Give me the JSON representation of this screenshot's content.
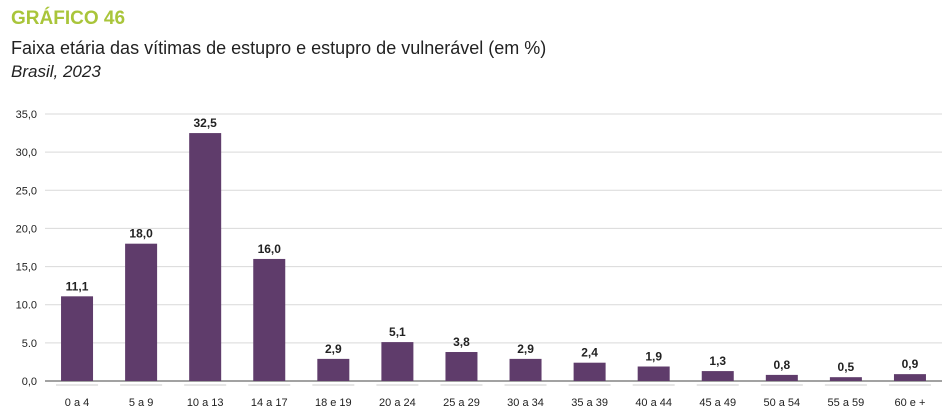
{
  "header": {
    "label": "GRÁFICO 46",
    "title": "Faixa etária das vítimas de estupro e estupro de vulnerável (em %)",
    "subtitle": "Brasil, 2023"
  },
  "colors": {
    "label": "#a9c53a",
    "bar": "#5f3c6b",
    "grid": "#d9d9d9",
    "axis": "#444444"
  },
  "chart_data": {
    "type": "bar",
    "title": "Faixa etária das vítimas de estupro e estupro de vulnerável (em %)",
    "subtitle": "Brasil, 2023",
    "xlabel": "",
    "ylabel": "",
    "categories": [
      "0 a 4",
      "5 a 9",
      "10 a 13",
      "14 a 17",
      "18 e 19",
      "20 a 24",
      "25 a 29",
      "30 a 34",
      "35 a 39",
      "40 a 44",
      "45 a 49",
      "50 a 54",
      "55 a 59",
      "60 e +"
    ],
    "values": [
      11.1,
      18.0,
      32.5,
      16.0,
      2.9,
      5.1,
      3.8,
      2.9,
      2.4,
      1.9,
      1.3,
      0.8,
      0.5,
      0.9
    ],
    "value_labels": [
      "11,1",
      "18,0",
      "32,5",
      "16,0",
      "2,9",
      "5,1",
      "3,8",
      "2,9",
      "2,4",
      "1,9",
      "1,3",
      "0,8",
      "0,5",
      "0,9"
    ],
    "ylim": [
      0,
      35
    ],
    "yticks": [
      0,
      5,
      10,
      15,
      20,
      25,
      30,
      35
    ],
    "ytick_labels": [
      "0,0",
      "5.0",
      "10.0",
      "15,0",
      "20,0",
      "25,0",
      "30,0",
      "35,0"
    ],
    "grid": true,
    "legend": "none"
  }
}
